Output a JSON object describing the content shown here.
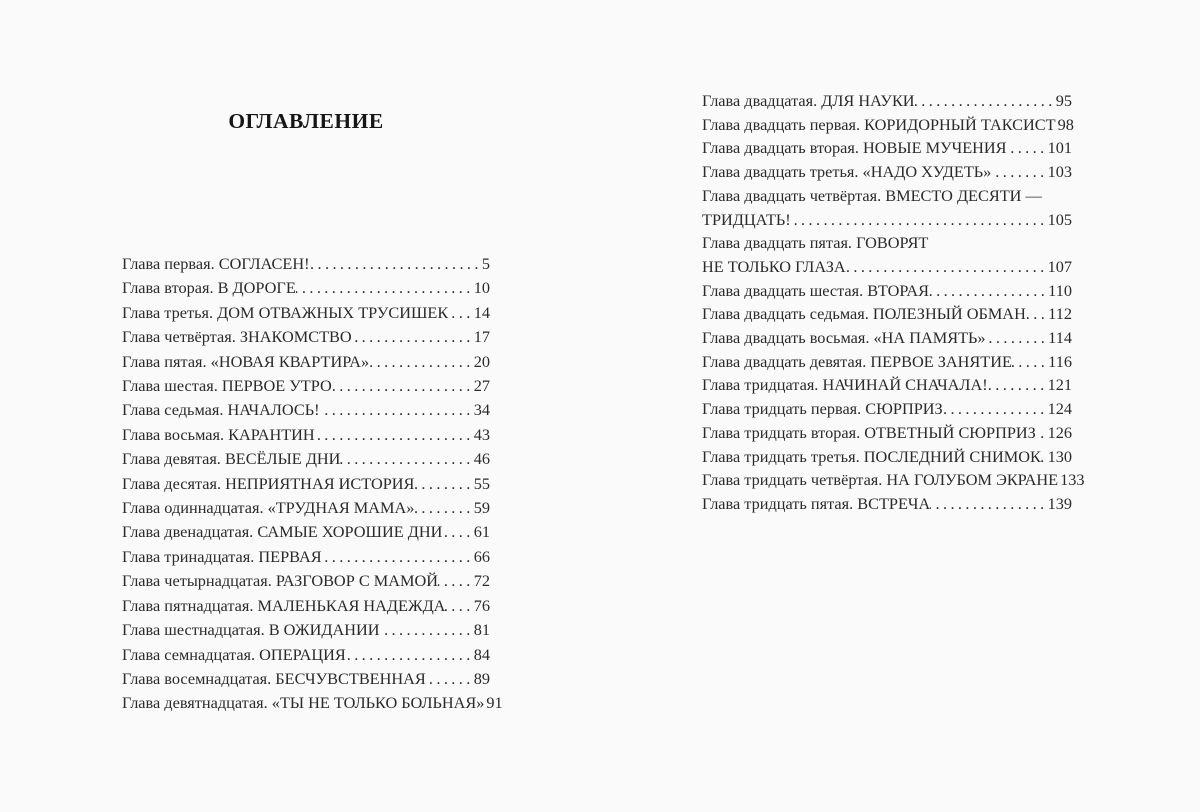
{
  "toc": {
    "heading": "ОГЛАВЛЕНИЕ",
    "colors": {
      "page_background": "#fafafa",
      "text": "#2a2a2a",
      "heading": "#161616"
    },
    "left": [
      {
        "title": "Глава первая. СОГЛАСЕН!",
        "page": "5"
      },
      {
        "title": "Глава вторая. В ДОРОГЕ",
        "page": "10"
      },
      {
        "title": "Глава третья. ДОМ ОТВАЖНЫХ ТРУСИШЕК",
        "page": "14"
      },
      {
        "title": "Глава четвёртая. ЗНАКОМСТВО",
        "page": "17"
      },
      {
        "title": "Глава пятая. «НОВАЯ КВАРТИРА»",
        "page": "20"
      },
      {
        "title": "Глава шестая. ПЕРВОЕ УТРО",
        "page": "27"
      },
      {
        "title": "Глава седьмая. НАЧАЛОСЬ!",
        "page": "34"
      },
      {
        "title": "Глава восьмая. КАРАНТИН",
        "page": "43"
      },
      {
        "title": "Глава девятая. ВЕСЁЛЫЕ ДНИ",
        "page": "46"
      },
      {
        "title": "Глава десятая. НЕПРИЯТНАЯ ИСТОРИЯ",
        "page": "55"
      },
      {
        "title": "Глава одиннадцатая. «ТРУДНАЯ МАМА»",
        "page": "59"
      },
      {
        "title": "Глава двенадцатая. САМЫЕ ХОРОШИЕ ДНИ",
        "page": "61"
      },
      {
        "title": "Глава тринадцатая. ПЕРВАЯ",
        "page": "66"
      },
      {
        "title": "Глава четырнадцатая. РАЗГОВОР С МАМОЙ",
        "page": "72"
      },
      {
        "title": "Глава пятнадцатая. МАЛЕНЬКАЯ НАДЕЖДА",
        "page": "76"
      },
      {
        "title": "Глава шестнадцатая. В ОЖИДАНИИ",
        "page": "81"
      },
      {
        "title": "Глава семнадцатая. ОПЕРАЦИЯ",
        "page": "84"
      },
      {
        "title": "Глава восемнадцатая. БЕСЧУВСТВЕННАЯ",
        "page": "89"
      },
      {
        "title": "Глава девятнадцатая. «ТЫ НЕ ТОЛЬКО БОЛЬНАЯ»",
        "page": "91"
      }
    ],
    "right": [
      {
        "title": "Глава двадцатая. ДЛЯ НАУКИ",
        "page": "95"
      },
      {
        "title": "Глава двадцать первая. КОРИДОРНЫЙ ТАКСИСТ",
        "page": "98"
      },
      {
        "title": "Глава двадцать вторая. НОВЫЕ МУЧЕНИЯ",
        "page": "101"
      },
      {
        "title": "Глава двадцать третья. «НАДО ХУДЕТЬ»",
        "page": "103"
      },
      {
        "title": "Глава двадцать четвёртая. ВМЕСТО ДЕСЯТИ —",
        "title2": "ТРИДЦАТЬ!",
        "page": "105"
      },
      {
        "title": "Глава двадцать пятая. ГОВОРЯТ",
        "title2": "НЕ ТОЛЬКО ГЛАЗА",
        "page": "107"
      },
      {
        "title": "Глава двадцать шестая. ВТОРАЯ",
        "page": "110"
      },
      {
        "title": "Глава двадцать седьмая. ПОЛЕЗНЫЙ ОБМАН",
        "page": "112"
      },
      {
        "title": "Глава двадцать восьмая. «НА ПАМЯТЬ»",
        "page": "114"
      },
      {
        "title": "Глава двадцать девятая. ПЕРВОЕ ЗАНЯТИЕ",
        "page": "116"
      },
      {
        "title": "Глава тридцатая. НАЧИНАЙ СНАЧАЛА!",
        "page": "121"
      },
      {
        "title": "Глава тридцать первая. СЮРПРИЗ",
        "page": "124"
      },
      {
        "title": "Глава тридцать вторая. ОТВЕТНЫЙ СЮРПРИЗ",
        "page": "126"
      },
      {
        "title": "Глава тридцать третья. ПОСЛЕДНИЙ СНИМОК",
        "page": "130"
      },
      {
        "title": "Глава тридцать четвёртая. НА ГОЛУБОМ ЭКРАНЕ",
        "page": "133"
      },
      {
        "title": "Глава тридцать пятая. ВСТРЕЧА",
        "page": "139"
      }
    ]
  }
}
